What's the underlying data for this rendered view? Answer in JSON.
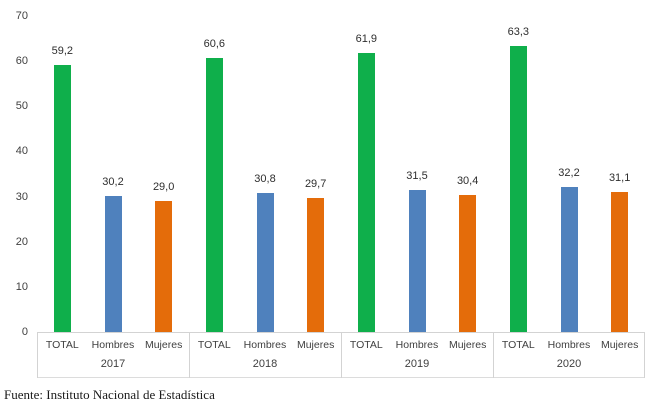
{
  "chart_data": {
    "type": "bar",
    "title": "",
    "xlabel": "",
    "ylabel": "",
    "ylim": [
      0,
      70
    ],
    "yticks": [
      0,
      10,
      20,
      30,
      40,
      50,
      60,
      70
    ],
    "grid": false,
    "legend": "none",
    "decimal_separator": ",",
    "categories": [
      "2017",
      "2018",
      "2019",
      "2020"
    ],
    "series_labels": [
      "TOTAL",
      "Hombres",
      "Mujeres"
    ],
    "series": [
      {
        "name": "TOTAL",
        "values": [
          59.2,
          60.6,
          61.9,
          63.3
        ]
      },
      {
        "name": "Hombres",
        "values": [
          30.2,
          30.8,
          31.5,
          32.2
        ]
      },
      {
        "name": "Mujeres",
        "values": [
          29.0,
          29.7,
          30.4,
          31.1
        ]
      }
    ],
    "groups": [
      {
        "year": "2017",
        "bars": [
          {
            "label": "TOTAL",
            "value": 59.2,
            "display": "59,2"
          },
          {
            "label": "Hombres",
            "value": 30.2,
            "display": "30,2"
          },
          {
            "label": "Mujeres",
            "value": 29.0,
            "display": "29,0"
          }
        ]
      },
      {
        "year": "2018",
        "bars": [
          {
            "label": "TOTAL",
            "value": 60.6,
            "display": "60,6"
          },
          {
            "label": "Hombres",
            "value": 30.8,
            "display": "30,8"
          },
          {
            "label": "Mujeres",
            "value": 29.7,
            "display": "29,7"
          }
        ]
      },
      {
        "year": "2019",
        "bars": [
          {
            "label": "TOTAL",
            "value": 61.9,
            "display": "61,9"
          },
          {
            "label": "Hombres",
            "value": 31.5,
            "display": "31,5"
          },
          {
            "label": "Mujeres",
            "value": 30.4,
            "display": "30,4"
          }
        ]
      },
      {
        "year": "2020",
        "bars": [
          {
            "label": "TOTAL",
            "value": 63.3,
            "display": "63,3"
          },
          {
            "label": "Hombres",
            "value": 32.2,
            "display": "32,2"
          },
          {
            "label": "Mujeres",
            "value": 31.1,
            "display": "31,1"
          }
        ]
      }
    ],
    "colors": {
      "TOTAL": "#0faf4b",
      "Hombres": "#4f81bd",
      "Mujeres": "#e46c0a",
      "axis_line": "#d3d3d3",
      "text": "#404040"
    }
  },
  "source_note": "Fuente: Instituto Nacional de Estadística"
}
